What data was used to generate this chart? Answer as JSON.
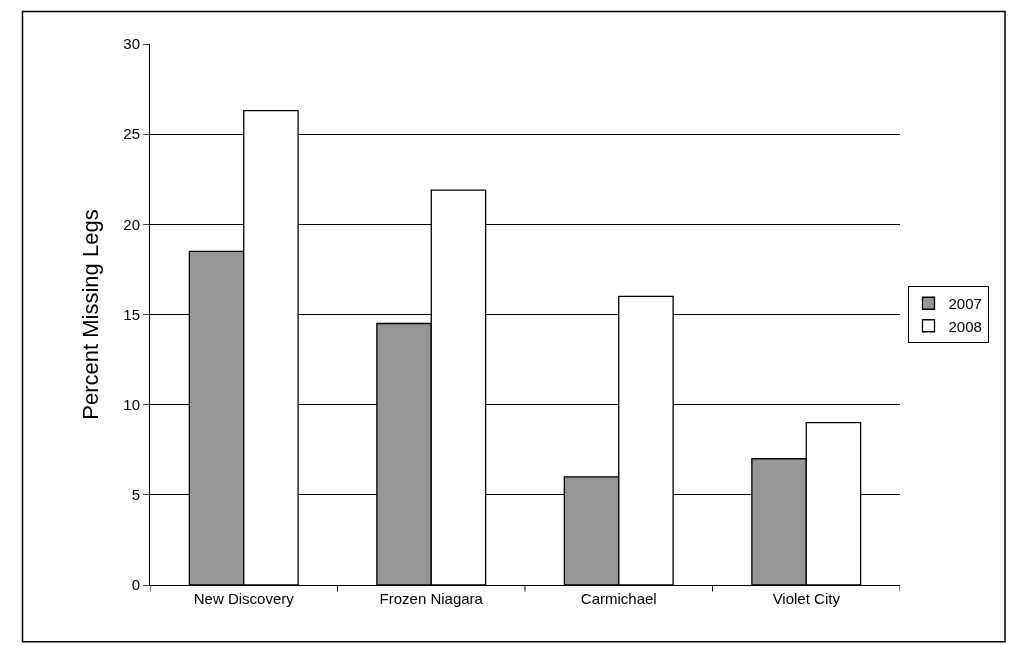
{
  "chart_data": {
    "type": "bar",
    "ylabel": "Percent Missing Legs",
    "categories": [
      "New Discovery",
      "Frozen Niagara",
      "Carmichael",
      "Violet City"
    ],
    "series": [
      {
        "name": "2007",
        "color": "#969696",
        "values": [
          18.5,
          14.5,
          6.0,
          7.0
        ]
      },
      {
        "name": "2008",
        "color": "#ffffff",
        "values": [
          26.3,
          21.9,
          16.0,
          9.0
        ]
      }
    ],
    "ylim": [
      0,
      30
    ],
    "yticks": [
      0,
      5,
      10,
      15,
      20,
      25,
      30
    ],
    "grid": "y",
    "legend": "right"
  }
}
